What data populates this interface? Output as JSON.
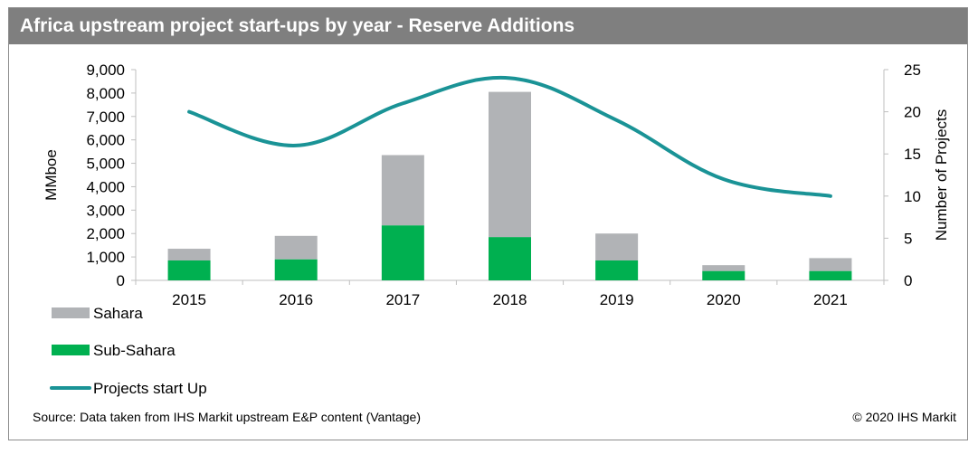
{
  "title": "Africa upstream project start-ups by year - Reserve Additions",
  "source": "Source: Data taken from IHS Markit upstream E&P content (Vantage)",
  "copyright": "© 2020 IHS Markit",
  "chart_data": {
    "type": "bar",
    "stacked": true,
    "categories": [
      "2015",
      "2016",
      "2017",
      "2018",
      "2019",
      "2020",
      "2021"
    ],
    "series": [
      {
        "name": "Sub-Sahara",
        "type": "bar",
        "axis": "left",
        "color": "#00b050",
        "values": [
          850,
          900,
          2350,
          1850,
          850,
          400,
          400
        ]
      },
      {
        "name": "Sahara",
        "type": "bar",
        "axis": "left",
        "color": "#b1b3b6",
        "values": [
          500,
          1000,
          3000,
          6200,
          1150,
          250,
          550
        ]
      },
      {
        "name": "Projects start Up",
        "type": "line",
        "axis": "right",
        "color": "#1a9396",
        "values": [
          20,
          16,
          21,
          24,
          19,
          12,
          10
        ]
      }
    ],
    "ylabel": "MMboe",
    "y2label": "Number of Projects",
    "ylim": [
      0,
      9000
    ],
    "y2lim": [
      0,
      25
    ],
    "yticks": [
      "0",
      "1,000",
      "2,000",
      "3,000",
      "4,000",
      "5,000",
      "6,000",
      "7,000",
      "8,000",
      "9,000"
    ],
    "y2ticks": [
      "0",
      "5",
      "10",
      "15",
      "20",
      "25"
    ],
    "legend": [
      "Sahara",
      "Sub-Sahara",
      "Projects start Up"
    ],
    "legend_position": "bottom-left",
    "grid": false
  }
}
